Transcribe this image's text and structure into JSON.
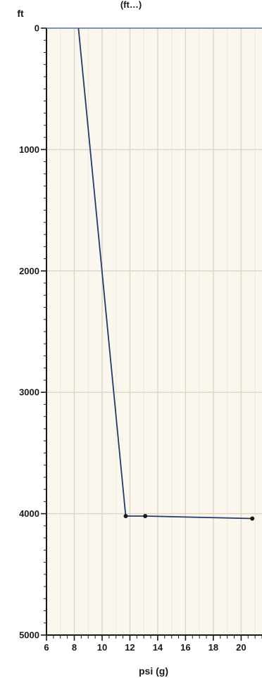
{
  "header_fragment": "(ft…)",
  "chart_data": {
    "type": "line",
    "xlabel": "psi (g)",
    "ylabel": "ft",
    "xlim": [
      6,
      21.5
    ],
    "ylim": [
      0,
      5000
    ],
    "y_inverted": true,
    "x_ticks": [
      6,
      8,
      10,
      12,
      14,
      16,
      18,
      20
    ],
    "y_ticks": [
      0,
      1000,
      2000,
      3000,
      4000,
      5000
    ],
    "grid": true,
    "series": [
      {
        "x": [
          8.3,
          11.7,
          13.1,
          20.8
        ],
        "y": [
          0,
          4020,
          4020,
          4040
        ],
        "marker_indices": [
          1,
          2,
          3
        ]
      }
    ]
  },
  "colors": {
    "background": "#fbf7ef",
    "grid_major": "#ddd6c3",
    "grid_minor": "#eee8da",
    "line": "#223a6b",
    "axis": "#1a1a1a",
    "top_rule": "#5a6fa0"
  }
}
